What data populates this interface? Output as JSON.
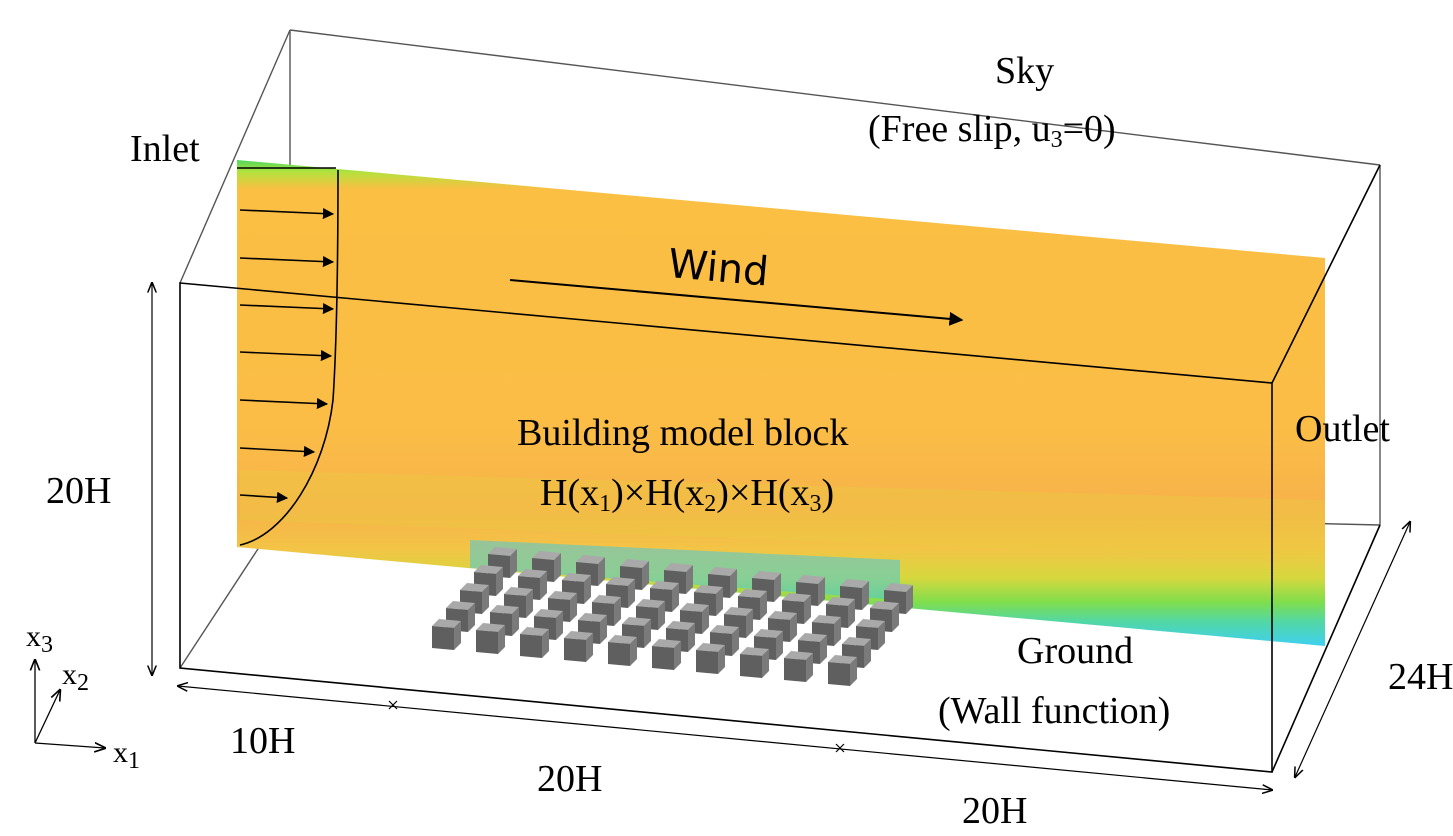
{
  "diagram": {
    "labels": {
      "sky": "Sky",
      "sky_bc": "(Free slip, u₃=0)",
      "inlet": "Inlet",
      "wind": "Wind",
      "building_title": "Building model block",
      "building_dims": "H(x₁)×H(x₂)×H(x₃)",
      "outlet": "Outlet",
      "ground": "Ground",
      "ground_bc": "(Wall function)",
      "height": "20H",
      "len_a": "10H",
      "len_b": "20H",
      "len_c": "20H",
      "width": "24H"
    },
    "axes": {
      "x1": "x₁",
      "x2": "x₂",
      "x3": "x₃"
    },
    "building_array": {
      "rows": 10,
      "cols": 5
    },
    "colors": {
      "flow_core": "#fbbf43",
      "flow_boundary": "#6edc4a",
      "flow_near_wall": "#3fd0f0",
      "building_top": "#a9a9a9",
      "building_front": "#5f5f5f",
      "outline": "#000000"
    }
  }
}
